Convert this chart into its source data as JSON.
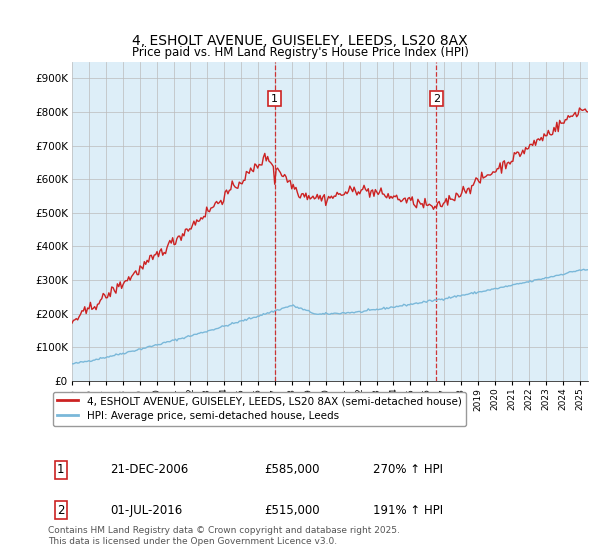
{
  "title": "4, ESHOLT AVENUE, GUISELEY, LEEDS, LS20 8AX",
  "subtitle": "Price paid vs. HM Land Registry's House Price Index (HPI)",
  "ylim": [
    0,
    950000
  ],
  "yticks": [
    0,
    100000,
    200000,
    300000,
    400000,
    500000,
    600000,
    700000,
    800000,
    900000
  ],
  "ytick_labels": [
    "£0",
    "£100K",
    "£200K",
    "£300K",
    "£400K",
    "£500K",
    "£600K",
    "£700K",
    "£800K",
    "£900K"
  ],
  "hpi_color": "#7ab8d9",
  "price_color": "#cc2222",
  "marker1_year": 2006.96,
  "marker2_year": 2016.5,
  "marker1_price": 585000,
  "marker2_price": 515000,
  "legend_line1": "4, ESHOLT AVENUE, GUISELEY, LEEDS, LS20 8AX (semi-detached house)",
  "legend_line2": "HPI: Average price, semi-detached house, Leeds",
  "table_row1": [
    "1",
    "21-DEC-2006",
    "£585,000",
    "270% ↑ HPI"
  ],
  "table_row2": [
    "2",
    "01-JUL-2016",
    "£515,000",
    "191% ↑ HPI"
  ],
  "footnote": "Contains HM Land Registry data © Crown copyright and database right 2025.\nThis data is licensed under the Open Government Licence v3.0.",
  "bg_color": "#ddeef8",
  "fig_color": "#ffffff",
  "grid_color": "#bbbbbb",
  "xlim_left": 1995,
  "xlim_right": 2025.5
}
